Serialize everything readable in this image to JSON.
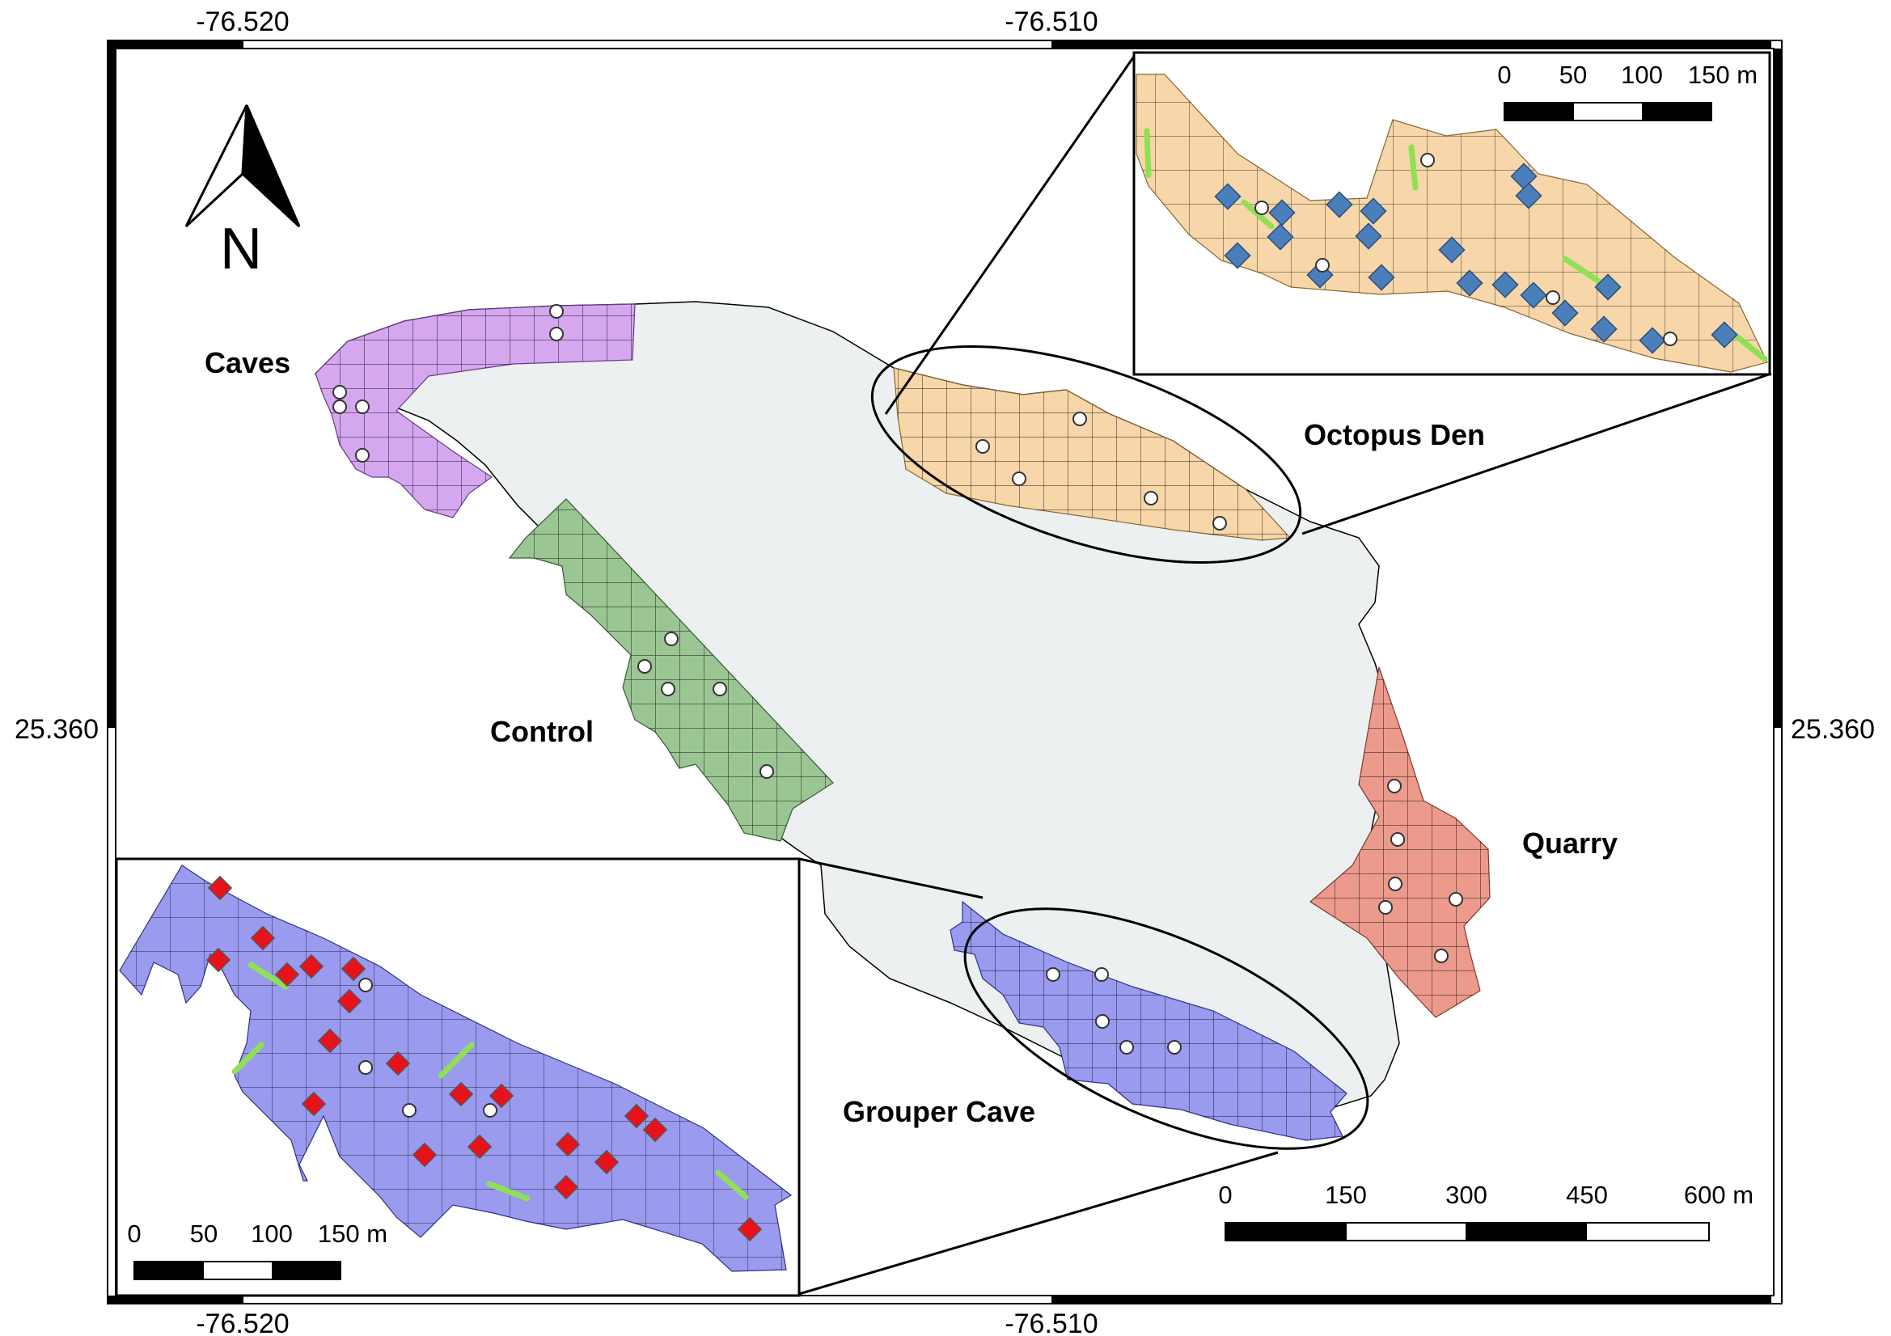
{
  "coordinates": {
    "lon_left": "-76.520",
    "lon_right": "-76.510",
    "lat_mid": "25.360"
  },
  "north_arrow": {
    "label": "N",
    "icon": "north-arrow-icon"
  },
  "sites": [
    {
      "id": "caves",
      "label": "Caves",
      "color": "#d5a7ef"
    },
    {
      "id": "control",
      "label": "Control",
      "color": "#9cc594"
    },
    {
      "id": "octopus-den",
      "label": "Octopus Den",
      "color": "#f7d6a9"
    },
    {
      "id": "quarry",
      "label": "Quarry",
      "color": "#ec9a8c"
    },
    {
      "id": "grouper-cave",
      "label": "Grouper Cave",
      "color": "#9a9aef"
    }
  ],
  "scale_bars": {
    "main": {
      "ticks": [
        "0",
        "150",
        "300",
        "450",
        "600 m"
      ]
    },
    "inset": {
      "ticks": [
        "0",
        "50",
        "100",
        "150 m"
      ]
    }
  },
  "colors": {
    "island": "#ecf0f0",
    "octopus_marker": "#4a7fbb",
    "grouper_marker": "#e8121a",
    "transect": "#8fe055",
    "station": "#ffffff"
  }
}
